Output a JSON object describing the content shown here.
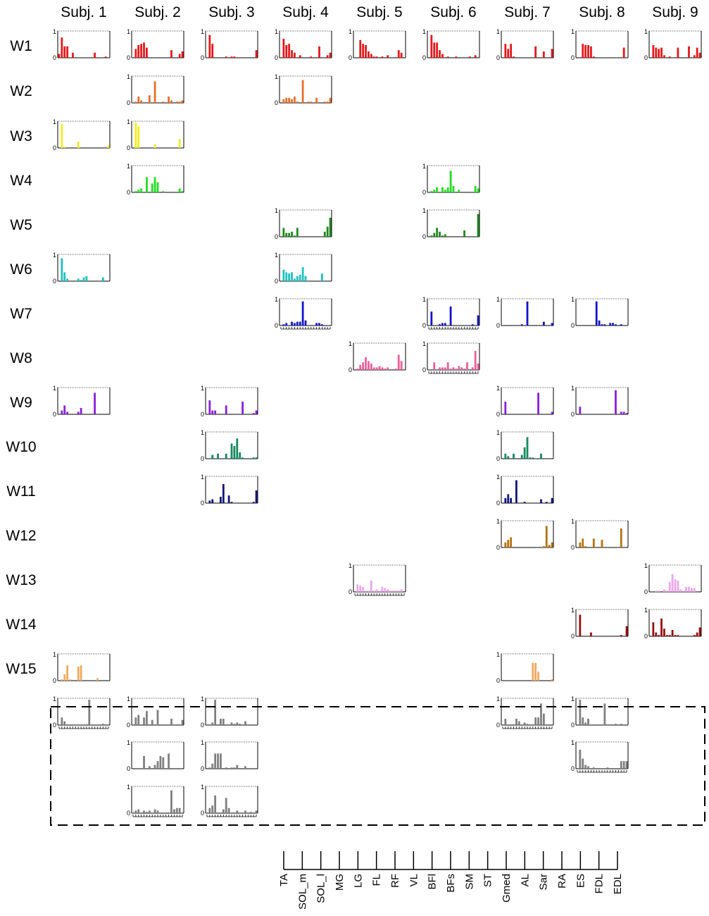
{
  "colors": {
    "W1": "#e31a1c",
    "W2": "#e8702a",
    "W3": "#eeee22",
    "W4": "#22dd22",
    "W5": "#1f8a1f",
    "W6": "#1fc0c0",
    "W7": "#1414c8",
    "W8": "#e8609a",
    "W9": "#8a1fd6",
    "W10": "#168a60",
    "W11": "#141478",
    "W12": "#b5720f",
    "W13": "#eaa8e8",
    "W14": "#990f0f",
    "W15": "#f2a85e",
    "extra": "#808080"
  },
  "y_tick_top": "1",
  "y_tick_bottom": "0",
  "chart_data": {
    "type": "bar",
    "subjects": [
      "Subj. 1",
      "Subj. 2",
      "Subj. 3",
      "Subj. 4",
      "Subj. 5",
      "Subj. 6",
      "Subj. 7",
      "Subj. 8",
      "Subj. 9"
    ],
    "synergies": [
      "W1",
      "W2",
      "W3",
      "W4",
      "W5",
      "W6",
      "W7",
      "W8",
      "W9",
      "W10",
      "W11",
      "W12",
      "W13",
      "W14",
      "W15"
    ],
    "muscles": [
      "TA",
      "SOL_m",
      "SOL_l",
      "MG",
      "LG",
      "FL",
      "RF",
      "VL",
      "BFl",
      "BFs",
      "SM",
      "ST",
      "Gmed",
      "AL",
      "Sar",
      "RA",
      "ES",
      "FDL",
      "EDL"
    ],
    "ylim": [
      0,
      1
    ],
    "panels": [
      {
        "syn": "W1",
        "subj": 1,
        "values": [
          0.15,
          0.8,
          0.45,
          0.45,
          0,
          0.2,
          0,
          0,
          0,
          0,
          0,
          0,
          0,
          0.2,
          0,
          0,
          0,
          0.05,
          0
        ]
      },
      {
        "syn": "W1",
        "subj": 2,
        "values": [
          0,
          0.35,
          0.5,
          0.55,
          0.6,
          0.4,
          0,
          0,
          0,
          0,
          0,
          0,
          0,
          0,
          0.3,
          0,
          0,
          0.15,
          0.25
        ]
      },
      {
        "syn": "W1",
        "subj": 3,
        "values": [
          0,
          0.9,
          0.55,
          0,
          0,
          0,
          0,
          0.05,
          0,
          0.05,
          0.05,
          0,
          0,
          0,
          0,
          0,
          0,
          0,
          0.3
        ]
      },
      {
        "syn": "W1",
        "subj": 4,
        "values": [
          0,
          0.75,
          0.5,
          0.55,
          0.3,
          0.2,
          0,
          0.1,
          0,
          0,
          0,
          0.05,
          0,
          0,
          0.45,
          0,
          0,
          0.1,
          0.2
        ]
      },
      {
        "syn": "W1",
        "subj": 5,
        "values": [
          0,
          0,
          0.7,
          0.55,
          0.5,
          0.25,
          0.15,
          0.05,
          0.05,
          0,
          0.05,
          0,
          0.1,
          0,
          0,
          0,
          0.3,
          0.2,
          0
        ]
      },
      {
        "syn": "W1",
        "subj": 6,
        "values": [
          0,
          0.9,
          0.6,
          0.6,
          0.3,
          0.15,
          0,
          0.05,
          0,
          0,
          0.05,
          0,
          0,
          0,
          0,
          0.05,
          0,
          0.1,
          0
        ]
      },
      {
        "syn": "W1",
        "subj": 7,
        "values": [
          0,
          0.55,
          0.35,
          0.55,
          0.05,
          0,
          0,
          0,
          0,
          0,
          0,
          0,
          0.45,
          0,
          0,
          0.25,
          0,
          0,
          0.35
        ]
      },
      {
        "syn": "W1",
        "subj": 8,
        "values": [
          0,
          0,
          0.55,
          0.5,
          0.5,
          0.45,
          0.05,
          0,
          0,
          0,
          0,
          0,
          0,
          0,
          0,
          0,
          0,
          0.4,
          0
        ]
      },
      {
        "syn": "W1",
        "subj": 9,
        "values": [
          0,
          0.5,
          0.4,
          0.35,
          0.4,
          0.1,
          0,
          0.05,
          0,
          0,
          0.4,
          0,
          0,
          0,
          0.45,
          0,
          0.1,
          0.4,
          0.2
        ]
      },
      {
        "syn": "W2",
        "subj": 2,
        "values": [
          0,
          0.05,
          0.25,
          0.1,
          0,
          0,
          0.3,
          0,
          0.85,
          0,
          0,
          0.05,
          0,
          0.25,
          0.1,
          0,
          0.05,
          0.05,
          0.1
        ]
      },
      {
        "syn": "W2",
        "subj": 4,
        "values": [
          0,
          0.15,
          0.2,
          0.2,
          0.15,
          0.25,
          0.05,
          0,
          0.9,
          0,
          0.05,
          0.05,
          0,
          0.2,
          0,
          0,
          0.05,
          0.05,
          0.2
        ]
      },
      {
        "syn": "W3",
        "subj": 1,
        "values": [
          0,
          0.95,
          0.05,
          0,
          0,
          0,
          0,
          0.25,
          0,
          0,
          0,
          0,
          0,
          0,
          0,
          0,
          0,
          0,
          0.1
        ]
      },
      {
        "syn": "W3",
        "subj": 2,
        "values": [
          0,
          1,
          0.85,
          0,
          0,
          0,
          0,
          0,
          0.15,
          0,
          0,
          0,
          0,
          0,
          0,
          0,
          0,
          0.35,
          0
        ]
      },
      {
        "syn": "W4",
        "subj": 2,
        "values": [
          0,
          0.05,
          0.1,
          0.15,
          0,
          0.6,
          0,
          0.35,
          0.6,
          0.4,
          0,
          0.05,
          0,
          0,
          0,
          0,
          0,
          0.15,
          0.05
        ]
      },
      {
        "syn": "W4",
        "subj": 6,
        "values": [
          0,
          0.05,
          0.1,
          0.2,
          0,
          0.2,
          0.1,
          0.2,
          0.85,
          0.25,
          0,
          0.1,
          0,
          0,
          0,
          0,
          0,
          0.25,
          0.15
        ]
      },
      {
        "syn": "W5",
        "subj": 4,
        "values": [
          0,
          0.35,
          0.15,
          0.15,
          0.2,
          0.05,
          0.35,
          0,
          0,
          0,
          0,
          0,
          0,
          0,
          0,
          0,
          0.2,
          0.4,
          0.75
        ]
      },
      {
        "syn": "W5",
        "subj": 6,
        "values": [
          0,
          0.05,
          0.15,
          0.35,
          0.2,
          0.05,
          0.1,
          0,
          0,
          0,
          0,
          0,
          0,
          0.25,
          0,
          0,
          0,
          0,
          0.9
        ]
      },
      {
        "syn": "W6",
        "subj": 1,
        "values": [
          0,
          0.9,
          0.35,
          0.1,
          0,
          0,
          0,
          0.1,
          0.05,
          0.15,
          0.2,
          0,
          0,
          0,
          0,
          0,
          0.15,
          0,
          0
        ]
      },
      {
        "syn": "W6",
        "subj": 4,
        "values": [
          0,
          0.45,
          0.35,
          0.3,
          0.35,
          0.1,
          0.2,
          0.25,
          0.55,
          0.2,
          0,
          0,
          0,
          0,
          0,
          0.3,
          0,
          0,
          0
        ]
      },
      {
        "syn": "W7",
        "subj": 4,
        "values": [
          0,
          0.05,
          0.1,
          0,
          0.15,
          0.1,
          0.15,
          0.15,
          0.95,
          0.2,
          0,
          0,
          0,
          0.1,
          0.1,
          0.05,
          0,
          0,
          0
        ]
      },
      {
        "syn": "W7",
        "subj": 6,
        "values": [
          0,
          0.55,
          0,
          0,
          0.05,
          0.1,
          0.1,
          0,
          0.75,
          0,
          0,
          0,
          0,
          0,
          0,
          0,
          0.05,
          0,
          0.4
        ]
      },
      {
        "syn": "W7",
        "subj": 7,
        "values": [
          0,
          0,
          0,
          0,
          0,
          0,
          0,
          0.05,
          0,
          0.95,
          0,
          0,
          0,
          0,
          0,
          0.15,
          0,
          0,
          0.1
        ]
      },
      {
        "syn": "W7",
        "subj": 8,
        "values": [
          0,
          0,
          0,
          0,
          0,
          0,
          0,
          0.95,
          0.2,
          0.05,
          0.05,
          0,
          0.1,
          0.1,
          0.05,
          0,
          0.05,
          0,
          0
        ]
      },
      {
        "syn": "W8",
        "subj": 5,
        "values": [
          0,
          0.05,
          0.2,
          0.3,
          0.5,
          0.35,
          0.25,
          0.1,
          0.1,
          0.15,
          0.1,
          0.05,
          0.1,
          0,
          0,
          0.05,
          0.6,
          0.35,
          0
        ]
      },
      {
        "syn": "W8",
        "subj": 6,
        "values": [
          0,
          0,
          0.3,
          0,
          0.1,
          0.1,
          0.1,
          0.3,
          0.05,
          0.1,
          0.05,
          0.15,
          0.1,
          0.05,
          0.3,
          0,
          0.1,
          0.75,
          0.25
        ]
      },
      {
        "syn": "W9",
        "subj": 1,
        "values": [
          0,
          0.15,
          0.35,
          0.1,
          0,
          0,
          0,
          0.1,
          0.25,
          0,
          0,
          0,
          0,
          0.85,
          0,
          0,
          0,
          0,
          0
        ]
      },
      {
        "syn": "W9",
        "subj": 3,
        "values": [
          0,
          0.55,
          0.15,
          0.15,
          0,
          0,
          0,
          0.35,
          0,
          0,
          0,
          0,
          0,
          0.5,
          0,
          0,
          0,
          0.05,
          0.15
        ]
      },
      {
        "syn": "W9",
        "subj": 7,
        "values": [
          0,
          0.5,
          0,
          0,
          0,
          0,
          0,
          0,
          0,
          0,
          0,
          0,
          0,
          0.85,
          0,
          0,
          0,
          0,
          0.1
        ]
      },
      {
        "syn": "W9",
        "subj": 8,
        "values": [
          0,
          0.3,
          0,
          0,
          0,
          0,
          0,
          0,
          0,
          0,
          0,
          0,
          0,
          0,
          0.95,
          0,
          0.1,
          0.1,
          0.05
        ]
      },
      {
        "syn": "W10",
        "subj": 3,
        "values": [
          0,
          0,
          0.15,
          0,
          0.2,
          0,
          0,
          0.2,
          0,
          0.6,
          0.5,
          0.8,
          0.25,
          0.05,
          0,
          0,
          0,
          0.05,
          0.05
        ]
      },
      {
        "syn": "W10",
        "subj": 7,
        "values": [
          0,
          0.2,
          0.1,
          0,
          0.2,
          0,
          0,
          0.15,
          0.45,
          0.85,
          0.05,
          0.05,
          0,
          0,
          0.2,
          0,
          0,
          0,
          0
        ]
      },
      {
        "syn": "W11",
        "subj": 3,
        "values": [
          0,
          0.1,
          0.15,
          0,
          0,
          0.25,
          0.75,
          0,
          0.3,
          0.05,
          0,
          0,
          0,
          0,
          0,
          0,
          0,
          0.05,
          0.5
        ]
      },
      {
        "syn": "W11",
        "subj": 7,
        "values": [
          0,
          0.2,
          0.35,
          0.2,
          0,
          0.9,
          0,
          0,
          0.05,
          0,
          0,
          0,
          0,
          0,
          0.15,
          0,
          0.05,
          0,
          0.2
        ]
      },
      {
        "syn": "W12",
        "subj": 7,
        "values": [
          0,
          0.2,
          0.3,
          0.4,
          0,
          0,
          0,
          0,
          0,
          0,
          0,
          0,
          0,
          0,
          0,
          0.05,
          0.85,
          0.1,
          0.2
        ]
      },
      {
        "syn": "W12",
        "subj": 8,
        "values": [
          0,
          0.2,
          0.35,
          0.05,
          0,
          0,
          0.35,
          0,
          0,
          0.3,
          0,
          0,
          0,
          0,
          0,
          0,
          0.75,
          0,
          0
        ]
      },
      {
        "syn": "W13",
        "subj": 5,
        "values": [
          0,
          0.3,
          0.25,
          0.2,
          0.05,
          0.05,
          0.45,
          0.05,
          0.1,
          0.05,
          0.2,
          0.15,
          0.1,
          0.05,
          0.05,
          0.05,
          0.05,
          0.1,
          0
        ]
      },
      {
        "syn": "W13",
        "subj": 9,
        "values": [
          0,
          0,
          0.05,
          0.05,
          0,
          0.1,
          0.05,
          0.4,
          0.7,
          0.5,
          0.45,
          0.1,
          0.05,
          0.2,
          0.2,
          0.15,
          0.15,
          0,
          0
        ]
      },
      {
        "syn": "W14",
        "subj": 8,
        "values": [
          0,
          0.85,
          0,
          0,
          0,
          0.15,
          0,
          0,
          0,
          0,
          0,
          0,
          0,
          0,
          0,
          0,
          0.05,
          0,
          0.4
        ]
      },
      {
        "syn": "W14",
        "subj": 9,
        "values": [
          0,
          0.55,
          0.15,
          0.05,
          0.7,
          0.3,
          0.05,
          0.05,
          0.25,
          0.05,
          0.05,
          0,
          0,
          0,
          0,
          0,
          0.05,
          0.15,
          0.35
        ]
      },
      {
        "syn": "W15",
        "subj": 1,
        "values": [
          0,
          0.05,
          0.25,
          0.6,
          0.05,
          0,
          0,
          0.55,
          0.6,
          0,
          0,
          0,
          0,
          0,
          0.1,
          0,
          0,
          0,
          0
        ]
      },
      {
        "syn": "W15",
        "subj": 7,
        "values": [
          0,
          0,
          0,
          0,
          0,
          0,
          0,
          0,
          0,
          0,
          0,
          0.7,
          0.7,
          0.35,
          0,
          0,
          0,
          0,
          0.05
        ]
      },
      {
        "syn": "extra",
        "subj": 1,
        "row": 1,
        "values": [
          0,
          0.3,
          0.15,
          0,
          0,
          0,
          0,
          0,
          0,
          0,
          0,
          1,
          0,
          0,
          0,
          0,
          0.05,
          0,
          0
        ]
      },
      {
        "syn": "extra",
        "subj": 2,
        "row": 1,
        "values": [
          0,
          0.3,
          0.4,
          0,
          0.3,
          0.55,
          0,
          0.2,
          0,
          0.6,
          0,
          0,
          0,
          0,
          0.25,
          0,
          0,
          0,
          0.2
        ]
      },
      {
        "syn": "extra",
        "subj": 3,
        "row": 1,
        "values": [
          0,
          0,
          0.1,
          1,
          0,
          0.25,
          0.25,
          0,
          0,
          0.1,
          0.05,
          0.1,
          0.05,
          0,
          0.15,
          0,
          0,
          0,
          0
        ]
      },
      {
        "syn": "extra",
        "subj": 7,
        "row": 1,
        "values": [
          0,
          0.25,
          0,
          0,
          0,
          0.25,
          0.15,
          0,
          0.1,
          0.05,
          0,
          0,
          0.3,
          0.3,
          0.85,
          0.45,
          0,
          0,
          0
        ]
      },
      {
        "syn": "extra",
        "subj": 8,
        "row": 1,
        "values": [
          0,
          1,
          0.3,
          0.1,
          0.25,
          0,
          0,
          0,
          0,
          0,
          0.85,
          0,
          0,
          0,
          0.05,
          0,
          0.05,
          0,
          0
        ]
      },
      {
        "syn": "extra",
        "subj": 2,
        "row": 2,
        "values": [
          0,
          0,
          0,
          0,
          0.5,
          0,
          0.1,
          0,
          0.15,
          0.3,
          0.5,
          0.45,
          0,
          0.6,
          0,
          0,
          0,
          0,
          0
        ]
      },
      {
        "syn": "extra",
        "subj": 3,
        "row": 2,
        "values": [
          0,
          0.05,
          0.2,
          0.6,
          0.6,
          0.6,
          0,
          0.05,
          0,
          0.05,
          0.05,
          0.15,
          0,
          0,
          0.1,
          0,
          0,
          0,
          0
        ]
      },
      {
        "syn": "extra",
        "subj": 8,
        "row": 2,
        "values": [
          0,
          0.75,
          0.4,
          0.15,
          0.1,
          0,
          0.05,
          0,
          0,
          0,
          0,
          0.05,
          0,
          0,
          0,
          0,
          0.3,
          0.3,
          0.3
        ]
      },
      {
        "syn": "extra",
        "subj": 2,
        "row": 3,
        "values": [
          0,
          0.1,
          0.15,
          0,
          0.1,
          0.05,
          0.1,
          0,
          0.15,
          0.1,
          0,
          0,
          0,
          0,
          0.9,
          0.15,
          0.2,
          0.2,
          0
        ]
      },
      {
        "syn": "extra",
        "subj": 3,
        "row": 3,
        "values": [
          0,
          0.2,
          0.3,
          0.7,
          0,
          0,
          0.15,
          0.6,
          0.2,
          0,
          0,
          0.1,
          0,
          0,
          0.1,
          0,
          0.05,
          0,
          0.1
        ]
      }
    ],
    "tick_rows": {
      "W7": [
        4,
        6
      ],
      "W8": [
        6
      ],
      "W13": [
        5
      ],
      "extra_row1": [
        1,
        7
      ],
      "extra_row2": [
        8
      ],
      "extra_row3": [
        2,
        3
      ]
    }
  }
}
